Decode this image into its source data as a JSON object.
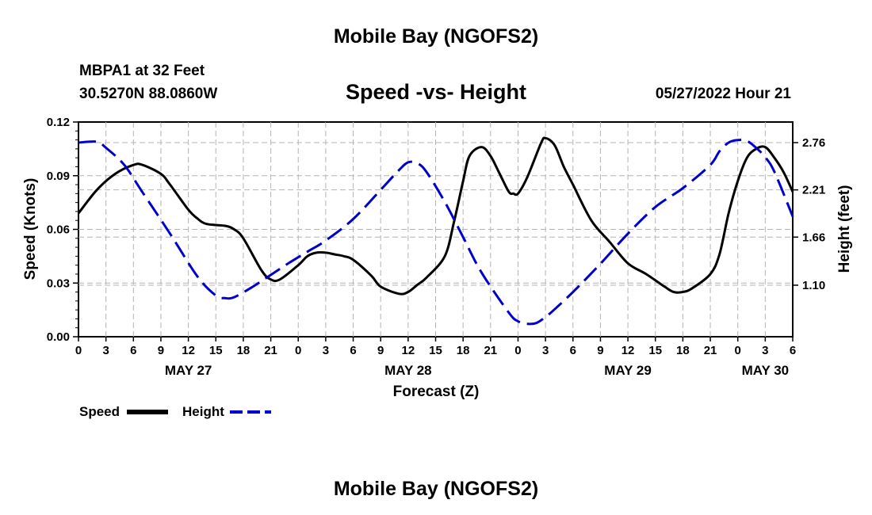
{
  "header": {
    "title": "Mobile Bay (NGOFS2)",
    "station": "MBPA1 at 32 Feet",
    "coords": "30.5270N  88.0860W",
    "subtitle": "Speed -vs- Height",
    "datetime": "05/27/2022 Hour 21",
    "footer_title": "Mobile Bay (NGOFS2)"
  },
  "legend": {
    "speed_label": "Speed",
    "height_label": "Height"
  },
  "chart_data": {
    "type": "line",
    "title": "Speed -vs- Height",
    "xlabel": "Forecast (Z)",
    "ylabel_left": "Speed (Knots)",
    "ylabel_right": "Height (feet)",
    "x_unit": "hours since 2022-05-27 00Z",
    "xlim": [
      0,
      78
    ],
    "xticks": [
      0,
      3,
      6,
      9,
      12,
      15,
      18,
      21,
      24,
      27,
      30,
      33,
      36,
      39,
      42,
      45,
      48,
      51,
      54,
      57,
      60,
      63,
      66,
      69,
      72,
      75,
      78
    ],
    "xtick_labels": [
      "0",
      "3",
      "6",
      "9",
      "12",
      "15",
      "18",
      "21",
      "0",
      "3",
      "6",
      "9",
      "12",
      "15",
      "18",
      "21",
      "0",
      "3",
      "6",
      "9",
      "12",
      "15",
      "18",
      "21",
      "0",
      "3",
      "6"
    ],
    "date_labels": [
      {
        "x": 12,
        "label": "MAY 27"
      },
      {
        "x": 36,
        "label": "MAY 28"
      },
      {
        "x": 60,
        "label": "MAY 29"
      },
      {
        "x": 75,
        "label": "MAY 30"
      }
    ],
    "ylim_left": [
      0,
      0.12
    ],
    "yticks_left": [
      "0.00",
      "0.03",
      "0.06",
      "0.09",
      "0.12"
    ],
    "ylim_right": [
      0.5,
      3.0
    ],
    "yticks_right": [
      "1.10",
      "1.66",
      "2.21",
      "2.76"
    ],
    "grid": true,
    "legend_position": "bottom-left",
    "series": [
      {
        "name": "Speed",
        "axis": "left",
        "color": "#000000",
        "style": "solid",
        "x": [
          0,
          2,
          4,
          6,
          7,
          9,
          10,
          12,
          13,
          14,
          16,
          17,
          18,
          20,
          21,
          22,
          24,
          25,
          26,
          27,
          28,
          29,
          30,
          32,
          33,
          35,
          36,
          37,
          38,
          40,
          41,
          42,
          42.7,
          44,
          45,
          46,
          47,
          47.5,
          48,
          49,
          50.5,
          51,
          52,
          53,
          54,
          56,
          58,
          60,
          62,
          64,
          65,
          66,
          67,
          69,
          70,
          71,
          72,
          73,
          74,
          75,
          76,
          77,
          78
        ],
        "y": [
          0.069,
          0.082,
          0.091,
          0.096,
          0.096,
          0.091,
          0.085,
          0.071,
          0.066,
          0.063,
          0.062,
          0.06,
          0.055,
          0.037,
          0.032,
          0.032,
          0.04,
          0.045,
          0.047,
          0.047,
          0.046,
          0.045,
          0.043,
          0.034,
          0.028,
          0.024,
          0.025,
          0.029,
          0.033,
          0.045,
          0.064,
          0.087,
          0.101,
          0.106,
          0.101,
          0.091,
          0.081,
          0.08,
          0.08,
          0.089,
          0.108,
          0.111,
          0.107,
          0.095,
          0.085,
          0.065,
          0.053,
          0.041,
          0.035,
          0.028,
          0.025,
          0.025,
          0.027,
          0.035,
          0.046,
          0.069,
          0.087,
          0.1,
          0.105,
          0.106,
          0.1,
          0.092,
          0.081
        ]
      },
      {
        "name": "Height",
        "axis": "right",
        "color": "#0000cc",
        "style": "dashed",
        "x": [
          0,
          2,
          3,
          5,
          7,
          10,
          13,
          15,
          16,
          17,
          19,
          21,
          23,
          25,
          27,
          30,
          33,
          35,
          36,
          37,
          38,
          40,
          42,
          44,
          47,
          48,
          49,
          50,
          51,
          52,
          54,
          57,
          60,
          63,
          66,
          69,
          70,
          71,
          72,
          73,
          74,
          75,
          76,
          78
        ],
        "y": [
          2.76,
          2.77,
          2.7,
          2.5,
          2.18,
          1.7,
          1.2,
          0.98,
          0.95,
          0.96,
          1.08,
          1.22,
          1.36,
          1.49,
          1.62,
          1.87,
          2.21,
          2.44,
          2.53,
          2.52,
          2.42,
          2.07,
          1.66,
          1.25,
          0.78,
          0.68,
          0.65,
          0.66,
          0.73,
          0.82,
          1.02,
          1.35,
          1.7,
          2.01,
          2.23,
          2.5,
          2.66,
          2.76,
          2.79,
          2.78,
          2.7,
          2.59,
          2.42,
          1.9
        ]
      }
    ]
  }
}
